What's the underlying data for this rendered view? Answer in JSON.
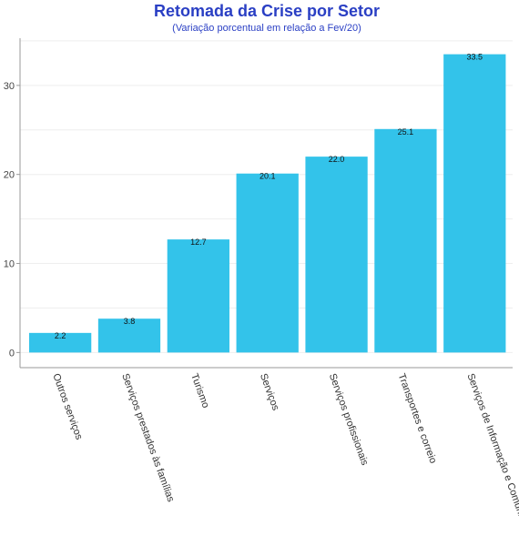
{
  "chart_data": {
    "type": "bar",
    "title": "Retomada da Crise por Setor",
    "subtitle": "(Variação porcentual em relação a Fev/20)",
    "xlabel": "",
    "ylabel": "",
    "categories": [
      "Outros serviços",
      "Serviços prestados às famílias",
      "Turismo",
      "Serviços",
      "Serviços profissionais",
      "Transportes e correio",
      "Serviços de Informação e Comunicação"
    ],
    "values": [
      2.2,
      3.8,
      12.7,
      20.1,
      22.0,
      25.1,
      33.5
    ],
    "value_labels": [
      "2.2",
      "3.8",
      "12.7",
      "20.1",
      "22.0",
      "25.1",
      "33.5"
    ],
    "ylim": [
      -1.7,
      35.3
    ],
    "yticks": [
      0,
      10,
      20,
      30
    ],
    "ytick_labels": [
      "0",
      "10",
      "20",
      "30"
    ],
    "grid": true,
    "legend": "none",
    "bar_color": "#33c3ea",
    "title_color": "#2a3fc4"
  }
}
